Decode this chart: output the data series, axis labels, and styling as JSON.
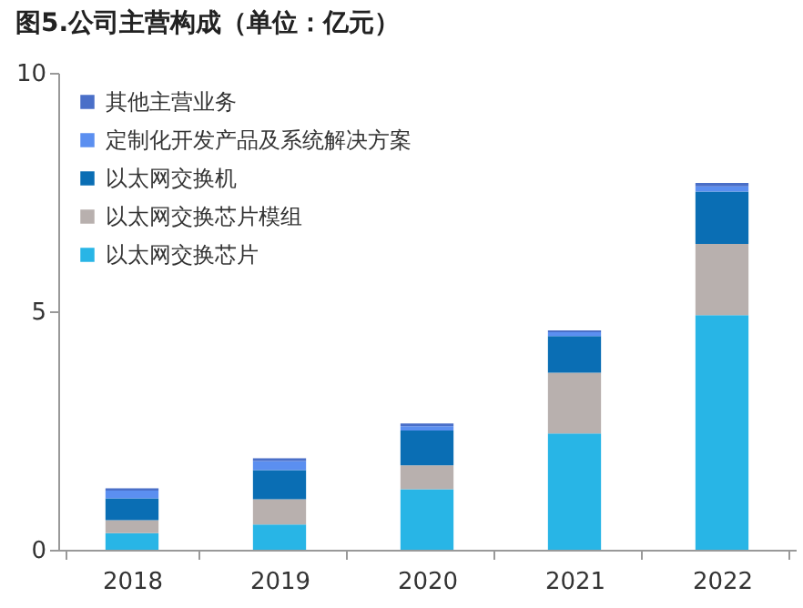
{
  "chart_data": {
    "type": "bar",
    "title": "图5.公司主营构成（单位：亿元）",
    "categories": [
      "2018",
      "2019",
      "2020",
      "2021",
      "2022"
    ],
    "stacked": true,
    "legend": "top left",
    "grid": false,
    "ylim": [
      0,
      10
    ],
    "yticks": [
      0,
      5,
      10
    ],
    "series": [
      {
        "name": "以太网交换芯片",
        "color": "#28b5e6",
        "values": [
          0.35,
          0.53,
          1.27,
          2.44,
          4.92
        ]
      },
      {
        "name": "以太网交换芯片模组",
        "color": "#b8b0ae",
        "values": [
          0.27,
          0.53,
          0.5,
          1.27,
          1.49
        ]
      },
      {
        "name": "以太网交换机",
        "color": "#0a6eb4",
        "values": [
          0.46,
          0.61,
          0.73,
          0.77,
          1.1
        ]
      },
      {
        "name": "定制化开发产品及系统解决方案",
        "color": "#5b8ff0",
        "values": [
          0.16,
          0.19,
          0.09,
          0.08,
          0.11
        ]
      },
      {
        "name": "其他主营业务",
        "color": "#4a6fc8",
        "values": [
          0.05,
          0.06,
          0.06,
          0.04,
          0.07
        ]
      }
    ]
  }
}
